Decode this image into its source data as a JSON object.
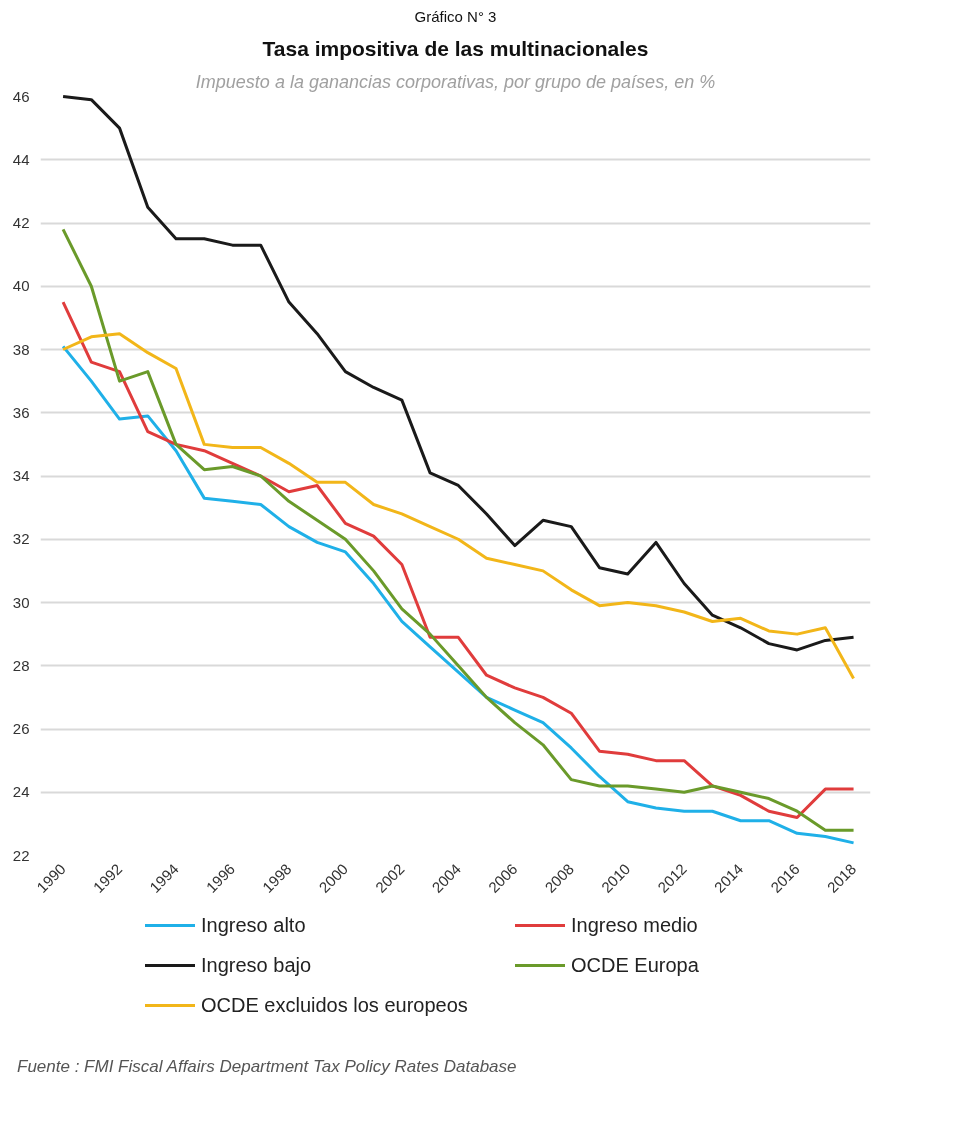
{
  "chart_data": {
    "type": "line",
    "title": "Tasa impositiva de las multinacionales",
    "subtitle": "Impuesto a la ganancias corporativas, por grupo de países, en %",
    "annotations": [
      "Gráfico N° 3",
      "Fuente : FMI Fiscal Affairs Department Tax Policy Rates Database"
    ],
    "x": [
      1990,
      1991,
      1992,
      1993,
      1994,
      1995,
      1996,
      1997,
      1998,
      1999,
      2000,
      2001,
      2002,
      2003,
      2004,
      2005,
      2006,
      2007,
      2008,
      2009,
      2010,
      2011,
      2012,
      2013,
      2014,
      2015,
      2016,
      2017,
      2018
    ],
    "series": [
      {
        "name": "Ingreso alto",
        "color": "#1fb0e8",
        "values": [
          38.1,
          37.0,
          35.8,
          35.9,
          34.8,
          33.3,
          33.2,
          33.1,
          32.4,
          31.9,
          31.6,
          30.6,
          29.4,
          28.6,
          27.8,
          27.0,
          26.6,
          26.2,
          25.4,
          24.5,
          23.7,
          23.5,
          23.4,
          23.4,
          23.1,
          23.1,
          22.7,
          22.6,
          22.4
        ]
      },
      {
        "name": "Ingreso medio",
        "color": "#e03c3c",
        "values": [
          39.5,
          37.6,
          37.3,
          35.4,
          35.0,
          34.8,
          34.4,
          34.0,
          33.5,
          33.7,
          32.5,
          32.1,
          31.2,
          28.9,
          28.9,
          27.7,
          27.3,
          27.0,
          26.5,
          25.3,
          25.2,
          25.0,
          25.0,
          24.2,
          23.9,
          23.4,
          23.2,
          24.1,
          24.1
        ]
      },
      {
        "name": "Ingreso bajo",
        "color": "#1a1a1a",
        "values": [
          46.0,
          45.9,
          45.0,
          42.5,
          41.5,
          41.5,
          41.3,
          41.3,
          39.5,
          38.5,
          37.3,
          36.8,
          36.4,
          34.1,
          33.7,
          32.8,
          31.8,
          32.6,
          32.4,
          31.1,
          30.9,
          31.9,
          30.6,
          29.6,
          29.2,
          28.7,
          28.5,
          28.8,
          28.9
        ]
      },
      {
        "name": "OCDE Europa",
        "color": "#6a9a2a",
        "values": [
          41.8,
          40.0,
          37.0,
          37.3,
          35.0,
          34.2,
          34.3,
          34.0,
          33.2,
          32.6,
          32.0,
          31.0,
          29.8,
          29.0,
          28.0,
          27.0,
          26.2,
          25.5,
          24.4,
          24.2,
          24.2,
          24.1,
          24.0,
          24.2,
          24.0,
          23.8,
          23.4,
          22.8,
          22.8
        ]
      },
      {
        "name": "OCDE excluidos los europeos",
        "color": "#f2b619",
        "values": [
          38.0,
          38.4,
          38.5,
          37.9,
          37.4,
          35.0,
          34.9,
          34.9,
          34.4,
          33.8,
          33.8,
          33.1,
          32.8,
          32.4,
          32.0,
          31.4,
          31.2,
          31.0,
          30.4,
          29.9,
          30.0,
          29.9,
          29.7,
          29.4,
          29.5,
          29.1,
          29.0,
          29.2,
          27.6
        ]
      }
    ],
    "xlim": [
      1989.2,
      2018.6
    ],
    "ylim": [
      22,
      46
    ],
    "xticks": [
      1990,
      1992,
      1994,
      1996,
      1998,
      2000,
      2002,
      2004,
      2006,
      2008,
      2010,
      2012,
      2014,
      2016,
      2018
    ],
    "yticks": [
      22,
      24,
      26,
      28,
      30,
      32,
      34,
      36,
      38,
      40,
      42,
      44,
      46
    ],
    "grid": "y",
    "legend": "bottom",
    "marker": "none",
    "line_style": "solid"
  }
}
